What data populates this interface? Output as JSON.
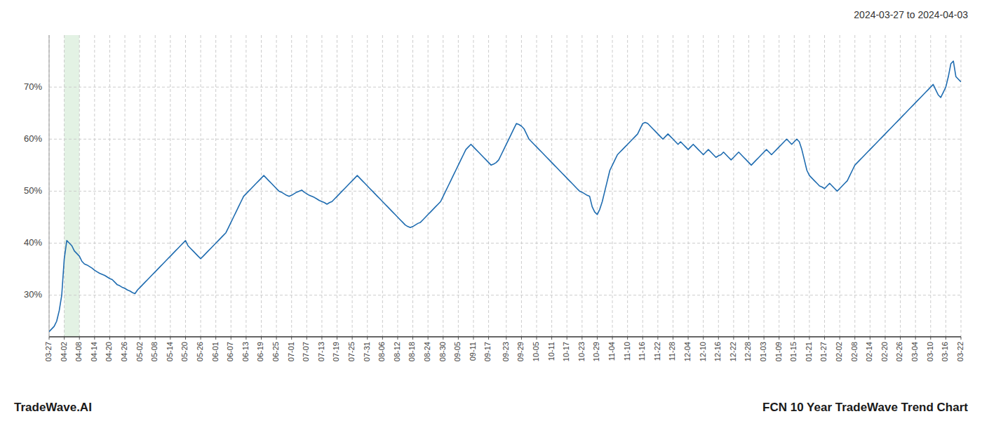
{
  "chart_data": {
    "type": "line",
    "title": "FCN 10 Year TradeWave Trend Chart",
    "subtitle": "2024-03-27 to 2024-04-03",
    "annotations": [
      "TradeWave.AI"
    ],
    "shade": {
      "start": "04-02",
      "end": "04-08",
      "color": "#c8e6c9"
    },
    "color": "#1f6cb0",
    "grid": true,
    "line_style": "solid",
    "ylim": [
      22,
      80
    ],
    "yticks": [
      {
        "value": 30,
        "label": "30%"
      },
      {
        "value": 40,
        "label": "40%"
      },
      {
        "value": 50,
        "label": "50%"
      },
      {
        "value": 60,
        "label": "60%"
      },
      {
        "value": 70,
        "label": "70%"
      }
    ],
    "categories": [
      "03-27",
      null,
      null,
      null,
      null,
      null,
      "04-02",
      null,
      null,
      null,
      null,
      null,
      "04-08",
      null,
      null,
      null,
      null,
      null,
      "04-14",
      null,
      null,
      null,
      null,
      null,
      "04-20",
      null,
      null,
      null,
      null,
      null,
      "04-26",
      null,
      null,
      null,
      null,
      null,
      "05-02",
      null,
      null,
      null,
      null,
      null,
      "05-08",
      null,
      null,
      null,
      null,
      null,
      "05-14",
      null,
      null,
      null,
      null,
      null,
      "05-20",
      null,
      null,
      null,
      null,
      null,
      "05-26",
      null,
      null,
      null,
      null,
      null,
      "06-01",
      null,
      null,
      null,
      null,
      null,
      "06-07",
      null,
      null,
      null,
      null,
      null,
      "06-13",
      null,
      null,
      null,
      null,
      null,
      "06-19",
      null,
      null,
      null,
      null,
      null,
      "06-25",
      null,
      null,
      null,
      null,
      null,
      "07-01",
      null,
      null,
      null,
      null,
      null,
      "07-07",
      null,
      null,
      null,
      null,
      null,
      "07-13",
      null,
      null,
      null,
      null,
      null,
      "07-19",
      null,
      null,
      null,
      null,
      null,
      "07-25",
      null,
      null,
      null,
      null,
      null,
      "07-31",
      null,
      null,
      null,
      null,
      null,
      "08-06",
      null,
      null,
      null,
      null,
      null,
      "08-12",
      null,
      null,
      null,
      null,
      null,
      "08-18",
      null,
      null,
      null,
      null,
      null,
      "08-24",
      null,
      null,
      null,
      null,
      null,
      "08-30",
      null,
      null,
      null,
      null,
      null,
      "09-05",
      null,
      null,
      null,
      null,
      null,
      "09-11",
      null,
      null,
      null,
      null,
      null,
      "09-17",
      null,
      null,
      null,
      null,
      null,
      null,
      "09-23",
      null,
      null,
      null,
      null,
      null,
      "09-29",
      null,
      null,
      null,
      null,
      null,
      "10-05",
      null,
      null,
      null,
      null,
      null,
      "10-11",
      null,
      null,
      null,
      null,
      null,
      "10-17",
      null,
      null,
      null,
      null,
      null,
      "10-23",
      null,
      null,
      null,
      null,
      null,
      "10-29",
      null,
      null,
      null,
      null,
      null,
      "11-04",
      null,
      null,
      null,
      null,
      null,
      "11-10",
      null,
      null,
      null,
      null,
      null,
      "11-16",
      null,
      null,
      null,
      null,
      null,
      "11-22",
      null,
      null,
      null,
      null,
      null,
      "11-28",
      null,
      null,
      null,
      null,
      null,
      "12-04",
      null,
      null,
      null,
      null,
      null,
      "12-10",
      null,
      null,
      null,
      null,
      null,
      "12-16",
      null,
      null,
      null,
      null,
      null,
      "12-22",
      null,
      null,
      null,
      null,
      null,
      "12-28",
      null,
      null,
      null,
      null,
      null,
      "01-03",
      null,
      null,
      null,
      null,
      null,
      "01-09",
      null,
      null,
      null,
      null,
      null,
      "01-15",
      null,
      null,
      null,
      null,
      null,
      "01-21",
      null,
      null,
      null,
      null,
      null,
      "01-27",
      null,
      null,
      null,
      null,
      null,
      "02-02",
      null,
      null,
      null,
      null,
      null,
      "02-08",
      null,
      null,
      null,
      null,
      null,
      "02-14",
      null,
      null,
      null,
      null,
      null,
      "02-20",
      null,
      null,
      null,
      null,
      null,
      "02-26",
      null,
      null,
      null,
      null,
      null,
      "03-04",
      null,
      null,
      null,
      null,
      null,
      "03-10",
      null,
      null,
      null,
      null,
      null,
      "03-16",
      null,
      null,
      null,
      null,
      null,
      "03-22"
    ],
    "values": [
      23.0,
      23.5,
      24.0,
      25.0,
      27.0,
      30.0,
      37.0,
      40.5,
      40.0,
      39.5,
      38.5,
      38.0,
      37.5,
      36.5,
      36.0,
      35.8,
      35.5,
      35.2,
      34.8,
      34.5,
      34.2,
      34.0,
      33.8,
      33.5,
      33.2,
      33.0,
      32.5,
      32.0,
      31.8,
      31.5,
      31.3,
      31.0,
      30.8,
      30.5,
      30.3,
      31.0,
      31.5,
      32.0,
      32.5,
      33.0,
      33.5,
      34.0,
      34.5,
      35.0,
      35.5,
      36.0,
      36.5,
      37.0,
      37.5,
      38.0,
      38.5,
      39.0,
      39.5,
      40.0,
      40.5,
      39.5,
      39.0,
      38.5,
      38.0,
      37.5,
      37.0,
      37.5,
      38.0,
      38.5,
      39.0,
      39.5,
      40.0,
      40.5,
      41.0,
      41.5,
      42.0,
      43.0,
      44.0,
      45.0,
      46.0,
      47.0,
      48.0,
      49.0,
      49.5,
      50.0,
      50.5,
      51.0,
      51.5,
      52.0,
      52.5,
      53.0,
      52.5,
      52.0,
      51.5,
      51.0,
      50.5,
      50.0,
      49.8,
      49.5,
      49.2,
      49.0,
      49.2,
      49.5,
      49.8,
      50.0,
      50.2,
      49.8,
      49.5,
      49.2,
      49.0,
      48.8,
      48.5,
      48.2,
      48.0,
      47.8,
      47.5,
      47.8,
      48.0,
      48.5,
      49.0,
      49.5,
      50.0,
      50.5,
      51.0,
      51.5,
      52.0,
      52.5,
      53.0,
      52.5,
      52.0,
      51.5,
      51.0,
      50.5,
      50.0,
      49.5,
      49.0,
      48.5,
      48.0,
      47.5,
      47.0,
      46.5,
      46.0,
      45.5,
      45.0,
      44.5,
      44.0,
      43.5,
      43.2,
      43.0,
      43.2,
      43.5,
      43.8,
      44.0,
      44.5,
      45.0,
      45.5,
      46.0,
      46.5,
      47.0,
      47.5,
      48.0,
      49.0,
      50.0,
      51.0,
      52.0,
      53.0,
      54.0,
      55.0,
      56.0,
      57.0,
      58.0,
      58.5,
      59.0,
      58.5,
      58.0,
      57.5,
      57.0,
      56.5,
      56.0,
      55.5,
      55.0,
      55.2,
      55.5,
      56.0,
      57.0,
      58.0,
      59.0,
      60.0,
      61.0,
      62.0,
      63.0,
      62.8,
      62.5,
      62.0,
      61.0,
      60.0,
      59.5,
      59.0,
      58.5,
      58.0,
      57.5,
      57.0,
      56.5,
      56.0,
      55.5,
      55.0,
      54.5,
      54.0,
      53.5,
      53.0,
      52.5,
      52.0,
      51.5,
      51.0,
      50.5,
      50.0,
      49.8,
      49.5,
      49.2,
      49.0,
      47.0,
      46.0,
      45.5,
      46.5,
      48.0,
      50.0,
      52.0,
      54.0,
      55.0,
      56.0,
      57.0,
      57.5,
      58.0,
      58.5,
      59.0,
      59.5,
      60.0,
      60.5,
      61.0,
      62.0,
      63.0,
      63.2,
      63.0,
      62.5,
      62.0,
      61.5,
      61.0,
      60.5,
      60.0,
      60.5,
      61.0,
      60.5,
      60.0,
      59.5,
      59.0,
      59.5,
      59.0,
      58.5,
      58.0,
      58.5,
      59.0,
      58.5,
      58.0,
      57.5,
      57.0,
      57.5,
      58.0,
      57.5,
      57.0,
      56.5,
      56.8,
      57.0,
      57.5,
      57.0,
      56.5,
      56.0,
      56.5,
      57.0,
      57.5,
      57.0,
      56.5,
      56.0,
      55.5,
      55.0,
      55.5,
      56.0,
      56.5,
      57.0,
      57.5,
      58.0,
      57.5,
      57.0,
      57.5,
      58.0,
      58.5,
      59.0,
      59.5,
      60.0,
      59.5,
      59.0,
      59.5,
      60.0,
      59.5,
      58.0,
      56.0,
      54.0,
      53.0,
      52.5,
      52.0,
      51.5,
      51.0,
      50.8,
      50.5,
      51.0,
      51.5,
      51.0,
      50.5,
      50.0,
      50.5,
      51.0,
      51.5,
      52.0,
      53.0,
      54.0,
      55.0,
      55.5,
      56.0,
      56.5,
      57.0,
      57.5,
      58.0,
      58.5,
      59.0,
      59.5,
      60.0,
      60.5,
      61.0,
      61.5,
      62.0,
      62.5,
      63.0,
      63.5,
      64.0,
      64.5,
      65.0,
      65.5,
      66.0,
      66.5,
      67.0,
      67.5,
      68.0,
      68.5,
      69.0,
      69.5,
      70.0,
      70.5,
      69.5,
      68.5,
      68.0,
      69.0,
      70.0,
      72.0,
      74.5,
      75.0,
      72.0,
      71.5,
      71.0
    ]
  }
}
